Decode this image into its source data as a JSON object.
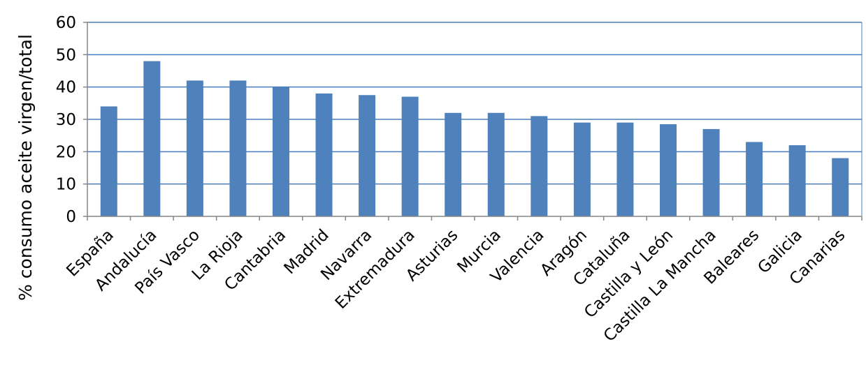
{
  "chart_data": {
    "type": "bar",
    "title": "",
    "xlabel": "",
    "ylabel": "% consumo aceite virgen/total",
    "ylim": [
      0,
      60
    ],
    "yticks": [
      0,
      10,
      20,
      30,
      40,
      50,
      60
    ],
    "grid": true,
    "legend": "none",
    "bar_color": "#4f81bd",
    "grid_color": "#4a7ebb",
    "categories": [
      "España",
      "Andalucía",
      "País Vasco",
      "La Rioja",
      "Cantabria",
      "Madrid",
      "Navarra",
      "Extremadura",
      "Asturias",
      "Murcia",
      "Valencia",
      "Aragón",
      "Cataluña",
      "Castilla y León",
      "Castilla La Mancha",
      "Baleares",
      "Galicia",
      "Canarias"
    ],
    "values": [
      34,
      48,
      42,
      42,
      40,
      38,
      37.5,
      37,
      32,
      32,
      31,
      29,
      29,
      28.5,
      27,
      23,
      22,
      18
    ]
  }
}
